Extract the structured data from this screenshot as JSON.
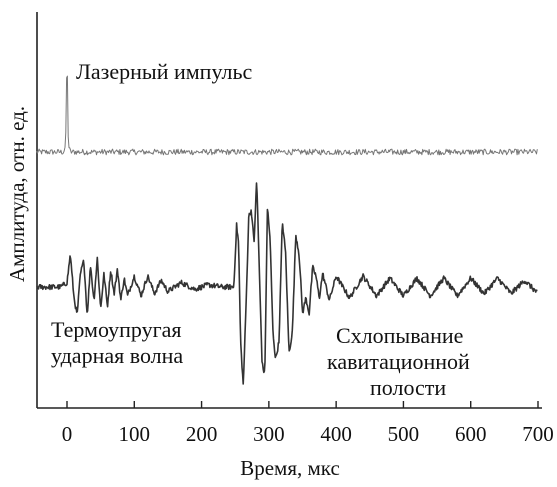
{
  "chart_data": {
    "type": "line",
    "title": "",
    "xlabel": "Время, мкс",
    "ylabel": "Амплитуда, отн. ед.",
    "xlim": [
      -50,
      710
    ],
    "x_ticks": [
      0,
      100,
      200,
      300,
      400,
      500,
      600,
      700
    ],
    "x_tick_labels": [
      "0",
      "100",
      "200",
      "300",
      "400",
      "500",
      "600",
      "700"
    ],
    "y_ticks_shown": false,
    "grid": false,
    "annotations": [
      "Лазерный импульс",
      "Термоупругая",
      "ударная волна",
      "Схлопывание",
      "кавитационной",
      "полости"
    ],
    "series": [
      {
        "color": "#777777",
        "baseline": 0,
        "noise_amplitude": 0.12,
        "x": [
          -45,
          -5,
          -2,
          0,
          2,
          5,
          700
        ],
        "y": [
          0,
          0,
          0.3,
          4.3,
          0.3,
          0,
          0
        ]
      },
      {
        "color": "#333333",
        "baseline": 0,
        "noise_amplitude": 0.12,
        "x": [
          -45,
          -10,
          0,
          5,
          10,
          15,
          20,
          25,
          30,
          35,
          40,
          45,
          50,
          55,
          60,
          65,
          70,
          75,
          80,
          85,
          90,
          100,
          110,
          120,
          130,
          140,
          150,
          170,
          190,
          210,
          230,
          248,
          252,
          255,
          258,
          262,
          266,
          270,
          274,
          278,
          282,
          286,
          290,
          294,
          298,
          302,
          306,
          310,
          315,
          320,
          325,
          330,
          335,
          340,
          345,
          350,
          355,
          360,
          365,
          370,
          375,
          380,
          390,
          400,
          420,
          440,
          460,
          480,
          500,
          520,
          540,
          560,
          580,
          600,
          620,
          640,
          660,
          680,
          700
        ],
        "y": [
          0,
          0,
          0.2,
          1.5,
          -0.4,
          -1.3,
          0.6,
          1.2,
          -1.3,
          1.0,
          -0.6,
          1.3,
          -1.0,
          0.6,
          -0.9,
          0.8,
          -0.3,
          0.8,
          -0.6,
          0.4,
          -0.4,
          0.5,
          -0.4,
          0.5,
          -0.3,
          0.3,
          -0.2,
          0.2,
          -0.1,
          0.1,
          0,
          0,
          2.8,
          2.0,
          -2.5,
          -4.5,
          -1.0,
          3.2,
          3.5,
          2.0,
          4.9,
          0.5,
          -3.5,
          -4.0,
          3.7,
          2.0,
          -2.0,
          -3.3,
          -2.5,
          3.0,
          1.5,
          -3.0,
          -2.0,
          2.4,
          1.5,
          -1.2,
          -0.5,
          -1.2,
          0.9,
          0.5,
          -0.5,
          0.6,
          -0.6,
          0.5,
          -0.5,
          0.5,
          -0.4,
          0.4,
          -0.4,
          0.4,
          -0.4,
          0.4,
          -0.4,
          0.4,
          -0.3,
          0.4,
          -0.3,
          0.3,
          -0.3
        ]
      }
    ]
  }
}
